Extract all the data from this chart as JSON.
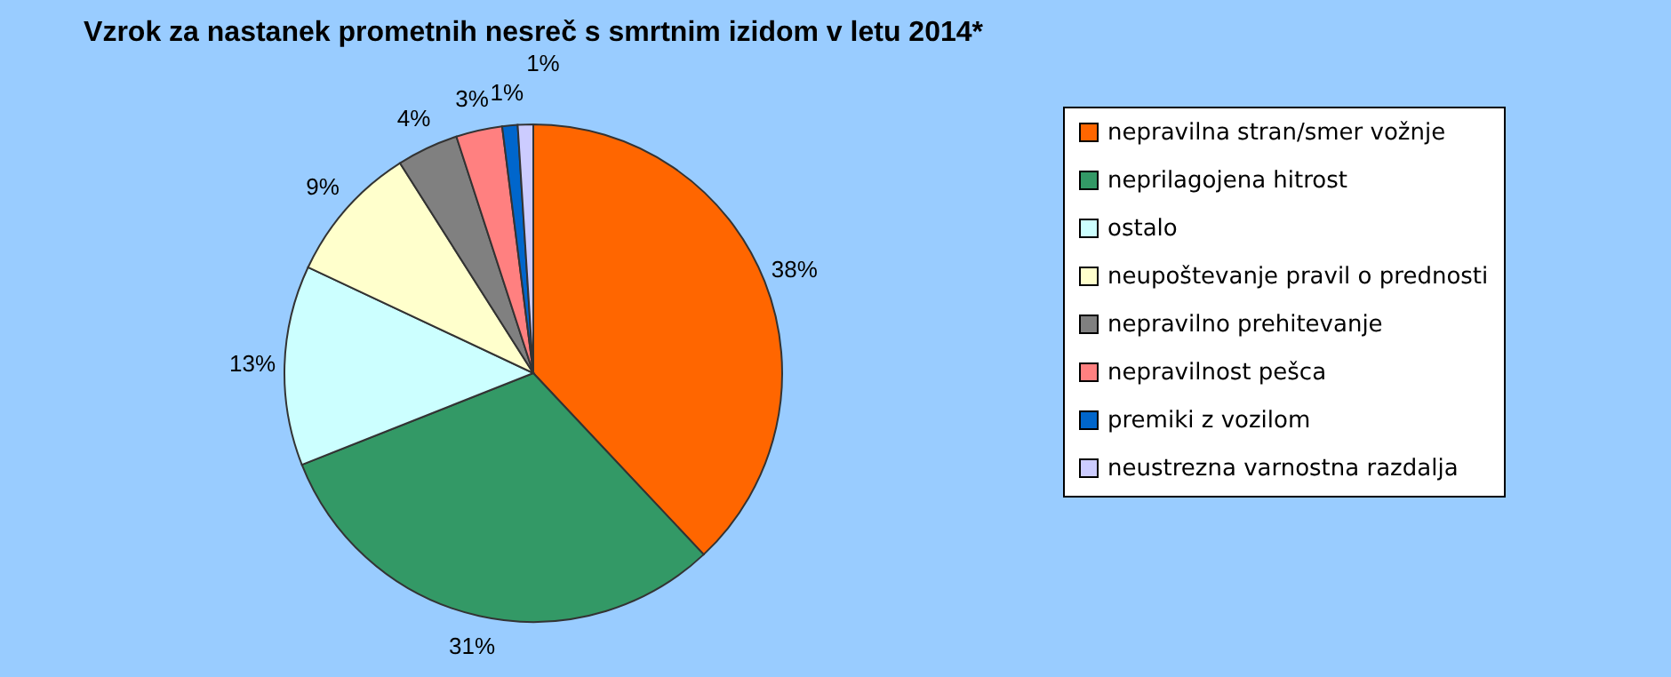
{
  "chart_data": {
    "type": "pie",
    "title": "Vzrok za nastanek prometnih nesreč s smrtnim izidom v letu 2014*",
    "categories": [
      "nepravilna stran/smer vožnje",
      "neprilagojena hitrost",
      "ostalo",
      "neupoštevanje pravil o prednosti",
      "nepravilno prehitevanje",
      "nepravilnost pešca",
      "premiki z vozilom",
      "neustrezna varnostna razdalja"
    ],
    "values": [
      38,
      31,
      13,
      9,
      4,
      3,
      1,
      1
    ],
    "value_labels": [
      "38%",
      "31%",
      "13%",
      "9%",
      "4%",
      "3%",
      "1%",
      "1%"
    ],
    "colors": [
      "#ff6600",
      "#339966",
      "#ccffff",
      "#ffffcc",
      "#808080",
      "#ff8080",
      "#0066cc",
      "#ccccff"
    ],
    "legend": "right"
  }
}
